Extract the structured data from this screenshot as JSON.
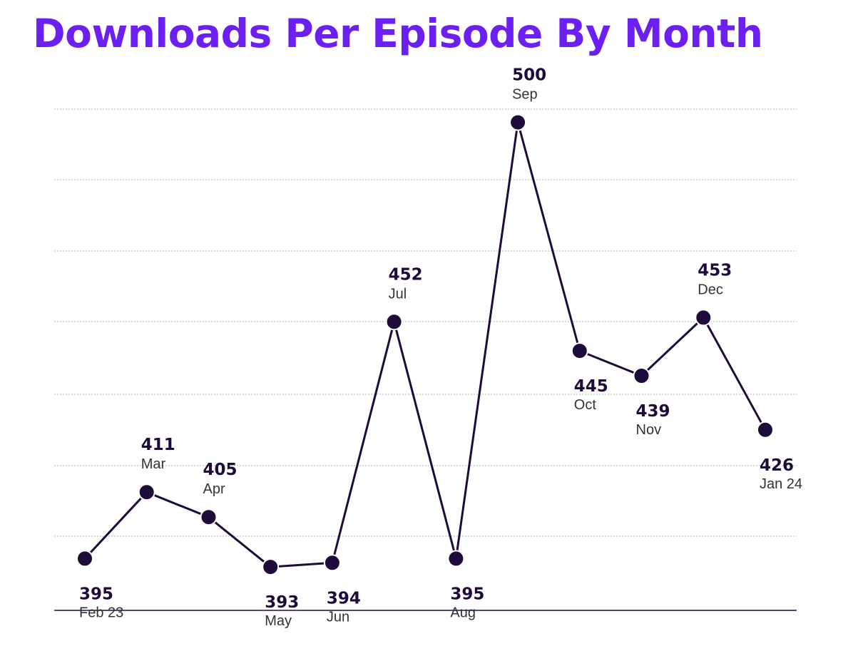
{
  "colors": {
    "title": "#6b1ff0",
    "line": "#1e0b3a",
    "grid": "#c4c4c4",
    "baseline": "#1e0b3a",
    "label_value": "#1e0b3a",
    "label_month": "#333333"
  },
  "chart_data": {
    "type": "line",
    "title": "Downloads Per Episode By Month",
    "xlabel": "",
    "ylabel": "",
    "categories": [
      "Feb 23",
      "Mar",
      "Apr",
      "May",
      "Jun",
      "Jul",
      "Aug",
      "Sep",
      "Oct",
      "Nov",
      "Dec",
      "Jan 24"
    ],
    "series": [
      {
        "name": "Downloads Per Episode",
        "values": [
          395,
          411,
          405,
          393,
          394,
          452,
          395,
          500,
          445,
          439,
          453,
          426
        ]
      }
    ],
    "label_position": [
      "below",
      "above",
      "above",
      "below",
      "below",
      "above",
      "below",
      "above",
      "below",
      "below",
      "above",
      "below"
    ],
    "ylim": [
      375,
      520
    ],
    "grid": true,
    "legend": "none"
  }
}
